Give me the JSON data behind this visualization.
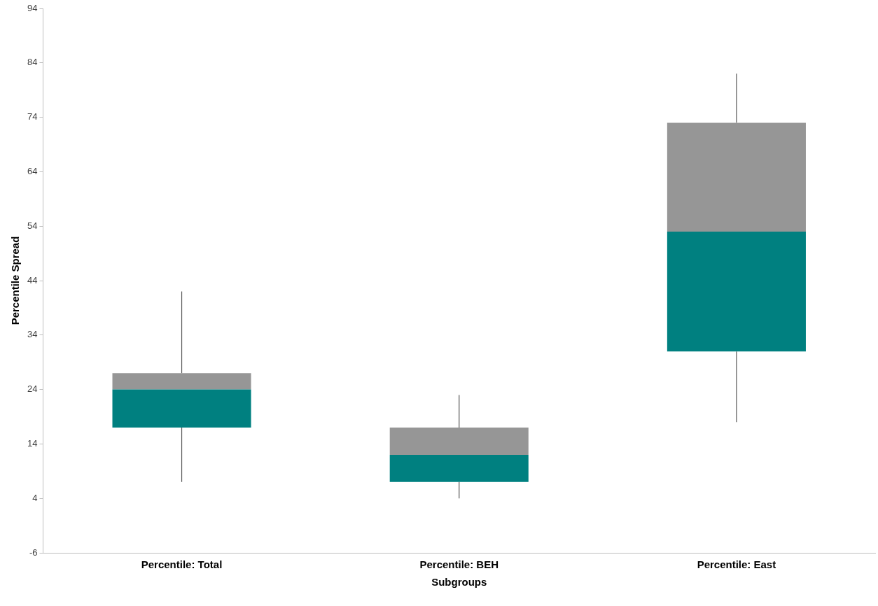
{
  "chart_data": {
    "type": "box",
    "xlabel": "Subgroups",
    "ylabel": "Percentile Spread",
    "categories": [
      "Percentile: Total",
      "Percentile: BEH",
      "Percentile: East"
    ],
    "color": "#008080",
    "boxes": [
      {
        "low": 7,
        "q1": 17,
        "median": 24,
        "q3": 27,
        "high": 42
      },
      {
        "low": 4,
        "q1": 7,
        "median": 12,
        "q3": 17,
        "high": 23
      },
      {
        "low": 18,
        "q1": 31,
        "median": 53,
        "q3": 73,
        "high": 82
      }
    ],
    "ylim": [
      -6,
      94
    ],
    "yticks": [
      -6,
      4,
      14,
      24,
      34,
      44,
      54,
      64,
      74,
      84,
      94
    ],
    "grid": false,
    "legend": false
  }
}
